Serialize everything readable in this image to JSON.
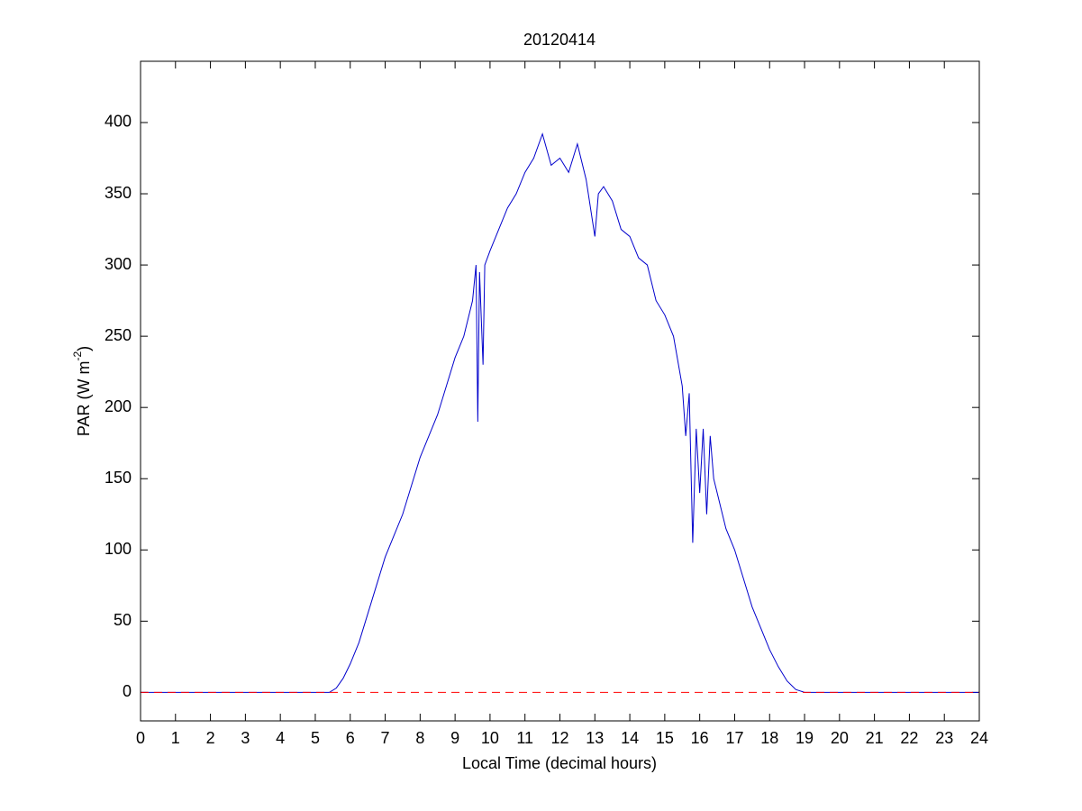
{
  "chart_data": {
    "type": "line",
    "title": "20120414",
    "xlabel": "Local Time (decimal hours)",
    "ylabel": [
      "PAR (W m",
      "-2",
      ")"
    ],
    "x": [
      0,
      5,
      5.4,
      5.6,
      5.8,
      6,
      6.25,
      6.5,
      6.75,
      7,
      7.25,
      7.5,
      7.75,
      8,
      8.25,
      8.5,
      8.75,
      9,
      9.25,
      9.5,
      9.6,
      9.65,
      9.7,
      9.8,
      9.85,
      10,
      10.25,
      10.5,
      10.75,
      11,
      11.25,
      11.5,
      11.75,
      12,
      12.25,
      12.5,
      12.75,
      13,
      13.1,
      13.25,
      13.5,
      13.75,
      14,
      14.25,
      14.5,
      14.75,
      15,
      15.25,
      15.5,
      15.6,
      15.7,
      15.8,
      15.9,
      16,
      16.1,
      16.2,
      16.3,
      16.4,
      16.5,
      16.75,
      17,
      17.25,
      17.5,
      17.75,
      18,
      18.25,
      18.5,
      18.75,
      19,
      24
    ],
    "series": [
      {
        "color": "#0000cc",
        "values": [
          0,
          0,
          0,
          3,
          10,
          20,
          35,
          55,
          75,
          95,
          110,
          125,
          145,
          165,
          180,
          195,
          215,
          235,
          250,
          275,
          300,
          190,
          295,
          230,
          300,
          310,
          325,
          340,
          350,
          365,
          375,
          392,
          370,
          375,
          365,
          385,
          360,
          320,
          350,
          355,
          345,
          325,
          320,
          305,
          300,
          275,
          265,
          250,
          215,
          180,
          210,
          105,
          185,
          140,
          185,
          125,
          180,
          150,
          140,
          115,
          100,
          80,
          60,
          45,
          30,
          18,
          8,
          2,
          0,
          0
        ]
      }
    ],
    "reference_line": {
      "value": 0,
      "color": "#ff0000",
      "dashed": true
    },
    "xlim": [
      0,
      24
    ],
    "xticks": [
      0,
      1,
      2,
      3,
      4,
      5,
      6,
      7,
      8,
      9,
      10,
      11,
      12,
      13,
      14,
      15,
      16,
      17,
      18,
      19,
      20,
      21,
      22,
      23,
      24
    ],
    "ylim": [
      -20,
      443
    ],
    "yticks": [
      0,
      50,
      100,
      150,
      200,
      250,
      300,
      350,
      400
    ],
    "grid": false
  }
}
